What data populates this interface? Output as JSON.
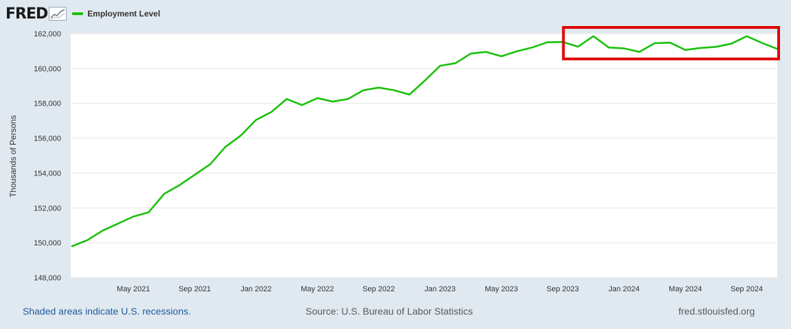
{
  "header": {
    "logo_text": "FRED",
    "logo_icon": "chart-line-icon",
    "legend_label": "Employment Level",
    "series_color": "#18c007"
  },
  "chart_data": {
    "type": "line",
    "title": "Employment Level",
    "xlabel": "",
    "ylabel": "Thousands of Persons",
    "ylim": [
      148000,
      162000
    ],
    "y_ticks": [
      148000,
      150000,
      152000,
      154000,
      156000,
      158000,
      160000,
      162000
    ],
    "y_tick_labels": [
      "148,000",
      "150,000",
      "152,000",
      "154,000",
      "156,000",
      "158,000",
      "160,000",
      "162,000"
    ],
    "x_range": [
      "2021-01",
      "2024-11"
    ],
    "x_ticks": [
      {
        "month_index": 4,
        "label": "May 2021"
      },
      {
        "month_index": 8,
        "label": "Sep 2021"
      },
      {
        "month_index": 12,
        "label": "Jan 2022"
      },
      {
        "month_index": 16,
        "label": "May 2022"
      },
      {
        "month_index": 20,
        "label": "Sep 2022"
      },
      {
        "month_index": 24,
        "label": "Jan 2023"
      },
      {
        "month_index": 28,
        "label": "May 2023"
      },
      {
        "month_index": 32,
        "label": "Sep 2023"
      },
      {
        "month_index": 36,
        "label": "Jan 2024"
      },
      {
        "month_index": 40,
        "label": "May 2024"
      },
      {
        "month_index": 44,
        "label": "Sep 2024"
      }
    ],
    "grid": true,
    "series": [
      {
        "name": "Employment Level",
        "color": "#18c007",
        "x": [
          "2021-01",
          "2021-02",
          "2021-03",
          "2021-04",
          "2021-05",
          "2021-06",
          "2021-07",
          "2021-08",
          "2021-09",
          "2021-10",
          "2021-11",
          "2021-12",
          "2022-01",
          "2022-02",
          "2022-03",
          "2022-04",
          "2022-05",
          "2022-06",
          "2022-07",
          "2022-08",
          "2022-09",
          "2022-10",
          "2022-11",
          "2022-12",
          "2023-01",
          "2023-02",
          "2023-03",
          "2023-04",
          "2023-05",
          "2023-06",
          "2023-07",
          "2023-08",
          "2023-09",
          "2023-10",
          "2023-11",
          "2023-12",
          "2024-01",
          "2024-02",
          "2024-03",
          "2024-04",
          "2024-05",
          "2024-06",
          "2024-07",
          "2024-08",
          "2024-09",
          "2024-10",
          "2024-11"
        ],
        "values": [
          149800,
          150150,
          150700,
          151100,
          151500,
          151750,
          152800,
          153300,
          153900,
          154500,
          155500,
          156150,
          157050,
          157500,
          158250,
          157900,
          158300,
          158100,
          158250,
          158750,
          158900,
          158750,
          158500,
          159300,
          160150,
          160300,
          160850,
          160950,
          160700,
          160980,
          161200,
          161500,
          161520,
          161250,
          161850,
          161200,
          161150,
          160950,
          161450,
          161480,
          161060,
          161180,
          161240,
          161420,
          161850,
          161460,
          161120
        ]
      }
    ],
    "annotation": {
      "type": "highlight-box",
      "color": "#e00000",
      "from_month_index": 32,
      "to_month_index": 46
    }
  },
  "footer": {
    "recession_note": "Shaded areas indicate U.S. recessions.",
    "source": "Source: U.S. Bureau of Labor Statistics",
    "site": "fred.stlouisfed.org"
  }
}
